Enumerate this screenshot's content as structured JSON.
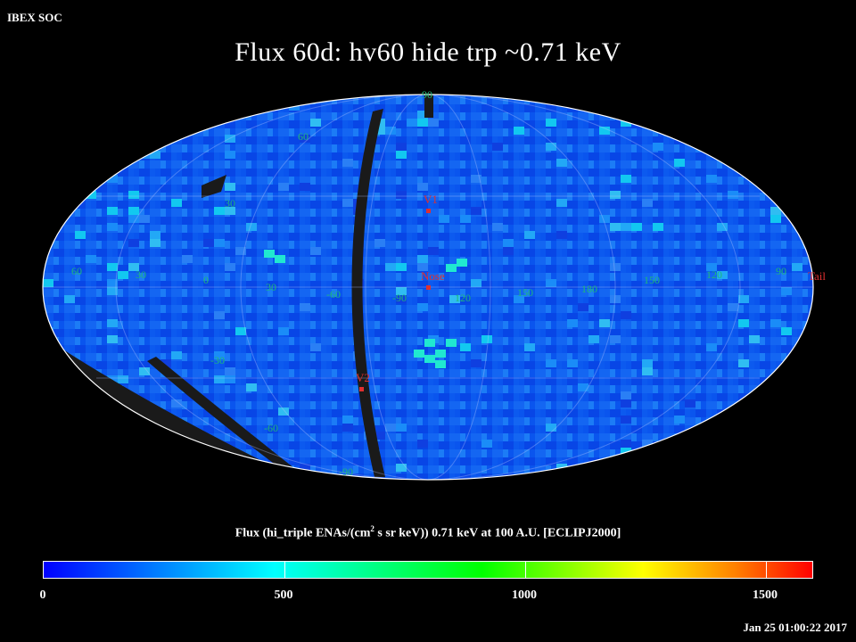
{
  "header": {
    "institution": "IBEX SOC",
    "title": "Flux   60d: hv60 hide trp ~0.71 keV"
  },
  "map": {
    "projection": "Mollweide (ecliptic J2000)",
    "ocean_color": "#0a55ee",
    "grid_labels": {
      "latitudes": [
        "60",
        "30",
        "-30",
        "-60",
        "90",
        "-90"
      ],
      "longitudes": [
        "60",
        "30",
        "0",
        "30",
        "-60",
        "-90",
        "90",
        "120",
        "150",
        "180",
        "150",
        "120",
        "90"
      ]
    },
    "markers": [
      {
        "name": "V1",
        "color": "#e03030"
      },
      {
        "name": "Nose",
        "color": "#e03030"
      },
      {
        "name": "V2",
        "color": "#e03030"
      },
      {
        "name": "Tail",
        "color": "#e03030"
      }
    ]
  },
  "colorbar": {
    "caption_prefix": "Flux (hi_triple ENAs/(cm",
    "caption_sup": "2",
    "caption_suffix": " s sr keV))  0.71 keV at 100 A.U. [ECLIPJ2000]",
    "ticks": [
      "0",
      "500",
      "1000",
      "1500"
    ],
    "range": [
      0,
      1600
    ]
  },
  "footer": {
    "timestamp": "Jan 25 01:00:22 2017"
  }
}
